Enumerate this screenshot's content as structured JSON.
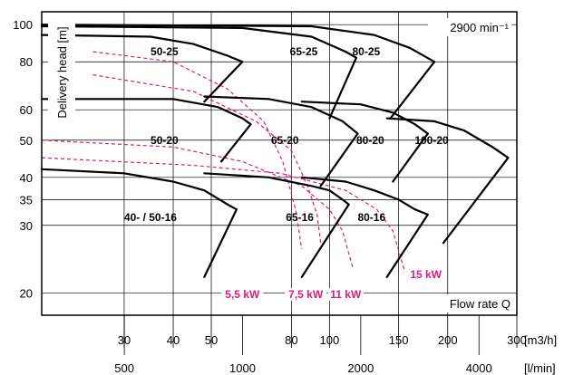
{
  "chart_data": {
    "type": "line",
    "title": "",
    "speed_label": "2900 min⁻¹",
    "ylabel": "Delivery head [m]",
    "xlabel": "Flow rate Q",
    "y_scale": "log",
    "x_scale": "log",
    "ylim": [
      17.5,
      108
    ],
    "xlim_m3h": [
      18.5,
      300
    ],
    "xlim_lmin": [
      308,
      5000
    ],
    "grid": true,
    "y_ticks": [
      {
        "value": 20,
        "label": "20"
      },
      {
        "value": 30,
        "label": "30"
      },
      {
        "value": 35,
        "label": "35"
      },
      {
        "value": 40,
        "label": "40"
      },
      {
        "value": 50,
        "label": "50"
      },
      {
        "value": 60,
        "label": "60"
      },
      {
        "value": 80,
        "label": "80"
      },
      {
        "value": 100,
        "label": "100"
      }
    ],
    "x_ticks_m3h": [
      {
        "value": 30,
        "label": "30"
      },
      {
        "value": 40,
        "label": "40"
      },
      {
        "value": 50,
        "label": "50"
      },
      {
        "value": 80,
        "label": "80"
      },
      {
        "value": 100,
        "label": "100"
      },
      {
        "value": 150,
        "label": "150"
      },
      {
        "value": 200,
        "label": "200"
      },
      {
        "value": 300,
        "label": "300"
      }
    ],
    "x_unit_m3h": "[m3/h]",
    "x_ticks_lmin": [
      {
        "value": 500,
        "label": "500"
      },
      {
        "value": 1000,
        "label": "1000"
      },
      {
        "value": 2000,
        "label": "2000"
      },
      {
        "value": 4000,
        "label": "4000"
      }
    ],
    "x_unit_lmin": "[l/min]",
    "pump_series": [
      {
        "name": "50-25",
        "label_at": [
          38,
          85
        ],
        "points": [
          [
            18.5,
            94
          ],
          [
            35,
            93
          ],
          [
            45,
            89
          ],
          [
            55,
            83
          ],
          [
            60,
            80
          ],
          [
            48,
            63
          ]
        ]
      },
      {
        "name": "65-25",
        "label_at": [
          86,
          85
        ],
        "points": [
          [
            18.5,
            99
          ],
          [
            60,
            98
          ],
          [
            90,
            93
          ],
          [
            110,
            85
          ],
          [
            117,
            82
          ],
          [
            100,
            57
          ]
        ]
      },
      {
        "name": "80-25",
        "label_at": [
          124,
          85
        ],
        "points": [
          [
            18.5,
            100
          ],
          [
            90,
            99
          ],
          [
            130,
            94
          ],
          [
            160,
            87
          ],
          [
            185,
            80
          ],
          [
            143,
            57
          ]
        ]
      },
      {
        "name": "50-20",
        "label_at": [
          38,
          50
        ],
        "points": [
          [
            18.5,
            64
          ],
          [
            40,
            64
          ],
          [
            52,
            61
          ],
          [
            60,
            57
          ],
          [
            63,
            55
          ],
          [
            53,
            44
          ]
        ]
      },
      {
        "name": "65-20",
        "label_at": [
          77,
          50
        ],
        "points": [
          [
            48,
            65
          ],
          [
            70,
            64
          ],
          [
            90,
            61
          ],
          [
            108,
            56
          ],
          [
            118,
            52
          ],
          [
            95,
            38
          ]
        ]
      },
      {
        "name": "80-20",
        "label_at": [
          127,
          50
        ],
        "points": [
          [
            85,
            63
          ],
          [
            120,
            62
          ],
          [
            145,
            59
          ],
          [
            165,
            55
          ],
          [
            178,
            52
          ],
          [
            145,
            39
          ]
        ]
      },
      {
        "name": "100-20",
        "label_at": [
          182,
          50
        ],
        "points": [
          [
            140,
            57
          ],
          [
            185,
            56
          ],
          [
            220,
            53
          ],
          [
            260,
            48
          ],
          [
            285,
            45
          ],
          [
            195,
            27
          ]
        ]
      },
      {
        "name": "40- / 50-16",
        "label_at": [
          35,
          31.5
        ],
        "points": [
          [
            18.5,
            42
          ],
          [
            30,
            41
          ],
          [
            40,
            39
          ],
          [
            48,
            37
          ],
          [
            55,
            34
          ],
          [
            58,
            33
          ],
          [
            48,
            22
          ]
        ]
      },
      {
        "name": "65-16",
        "label_at": [
          84,
          31.5
        ],
        "points": [
          [
            48,
            41
          ],
          [
            70,
            40
          ],
          [
            90,
            38
          ],
          [
            100,
            37
          ],
          [
            108,
            35
          ],
          [
            112,
            34
          ],
          [
            85,
            22
          ]
        ]
      },
      {
        "name": "80-16",
        "label_at": [
          128,
          31.5
        ],
        "points": [
          [
            85,
            40
          ],
          [
            110,
            39
          ],
          [
            130,
            37
          ],
          [
            150,
            35
          ],
          [
            165,
            33
          ],
          [
            178,
            32
          ],
          [
            140,
            22
          ]
        ]
      }
    ],
    "power_series": [
      {
        "name": "5,5 kW",
        "label_at": [
          60,
          19.5
        ],
        "points": [
          [
            25,
            85
          ],
          [
            40,
            80
          ],
          [
            55,
            68
          ],
          [
            68,
            56
          ],
          [
            76,
            44
          ],
          [
            82,
            33
          ],
          [
            85,
            26
          ]
        ]
      },
      {
        "name": "7,5 kW",
        "label_at": [
          87,
          19.5
        ],
        "points": [
          [
            25,
            74
          ],
          [
            45,
            67
          ],
          [
            65,
            56
          ],
          [
            80,
            47
          ],
          [
            88,
            38
          ],
          [
            93,
            32
          ],
          [
            95,
            27
          ]
        ]
      },
      {
        "name": "11 kW",
        "label_at": [
          110,
          19.5
        ],
        "points": [
          [
            18.5,
            50
          ],
          [
            40,
            48
          ],
          [
            60,
            44
          ],
          [
            85,
            38
          ],
          [
            100,
            33
          ],
          [
            108,
            29
          ],
          [
            115,
            23
          ]
        ]
      },
      {
        "name": "15 kW",
        "label_at": [
          176,
          22
        ],
        "points": [
          [
            18.5,
            45
          ],
          [
            45,
            43
          ],
          [
            75,
            41
          ],
          [
            110,
            37
          ],
          [
            132,
            33
          ],
          [
            145,
            29
          ],
          [
            155,
            23
          ]
        ]
      }
    ],
    "colors": {
      "axis": "#000000",
      "grid": "#000000",
      "curve": "#000000",
      "power": "#e0197d"
    }
  }
}
